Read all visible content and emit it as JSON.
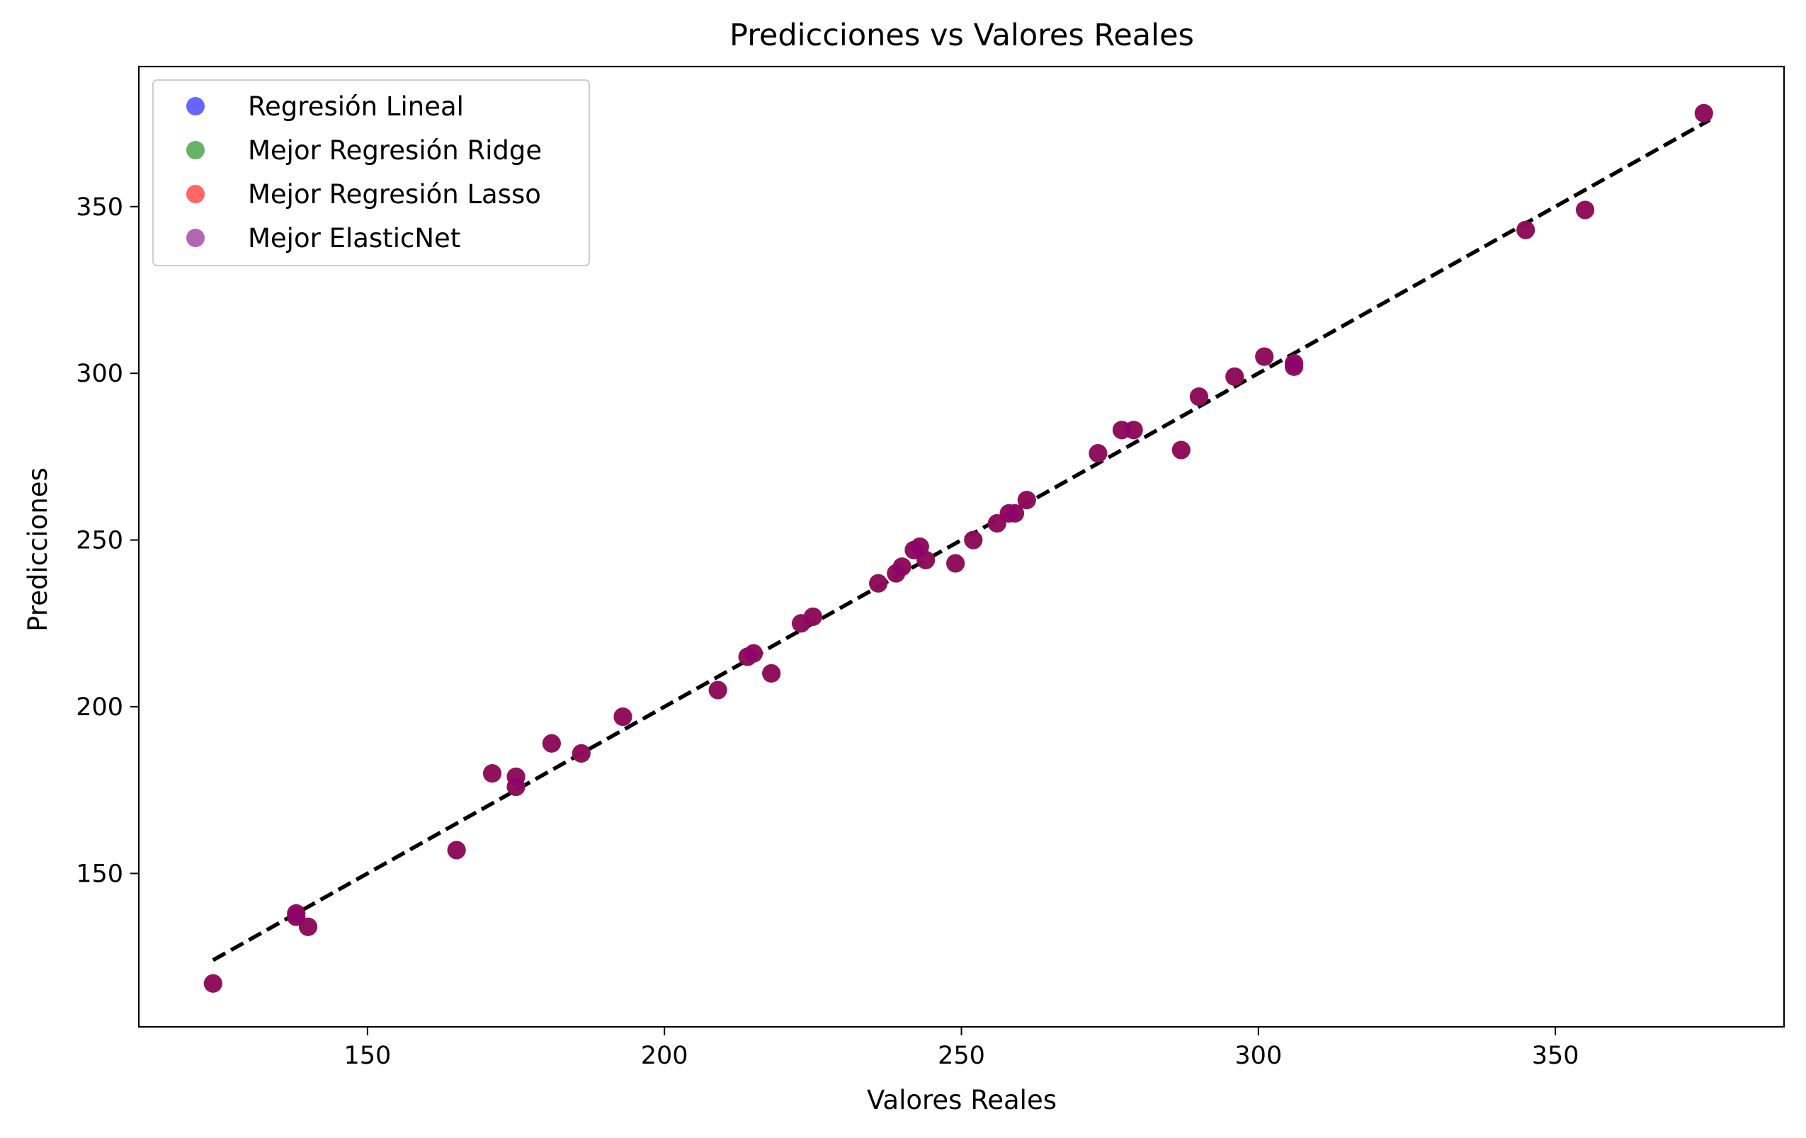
{
  "chart_data": {
    "type": "scatter",
    "title": "Predicciones vs Valores Reales",
    "xlabel": "Valores Reales",
    "ylabel": "Predicciones",
    "xlim": [
      111.5,
      388.5
    ],
    "ylim": [
      104,
      392
    ],
    "xticks": [
      150,
      200,
      250,
      300,
      350
    ],
    "yticks": [
      150,
      200,
      250,
      300,
      350
    ],
    "grid": false,
    "legend_position": "top-left",
    "reference_line": {
      "style": "dashed",
      "color": "#000000",
      "x": [
        124,
        376
      ],
      "y": [
        124,
        376
      ]
    },
    "series": [
      {
        "name": "Regresión Lineal",
        "color": "#0000ff",
        "x": [
          124,
          138,
          138,
          140,
          165,
          171,
          175,
          175,
          181,
          186,
          193,
          209,
          214,
          215,
          218,
          223,
          225,
          236,
          239,
          240,
          242,
          243,
          244,
          249,
          252,
          256,
          258,
          259,
          261,
          273,
          277,
          279,
          287,
          290,
          296,
          301,
          306,
          306,
          345,
          355,
          375
        ],
        "y": [
          117,
          137,
          138,
          134,
          157,
          180,
          176,
          179,
          189,
          186,
          197,
          205,
          215,
          216,
          210,
          225,
          227,
          237,
          240,
          242,
          247,
          248,
          244,
          243,
          250,
          255,
          258,
          258,
          262,
          276,
          283,
          283,
          277,
          293,
          299,
          305,
          302,
          303,
          343,
          349,
          378
        ]
      },
      {
        "name": "Mejor Regresión Ridge",
        "color": "#008000",
        "x": [
          124,
          138,
          138,
          140,
          165,
          171,
          175,
          175,
          181,
          186,
          193,
          209,
          214,
          215,
          218,
          223,
          225,
          236,
          239,
          240,
          242,
          243,
          244,
          249,
          252,
          256,
          258,
          259,
          261,
          273,
          277,
          279,
          287,
          290,
          296,
          301,
          306,
          306,
          345,
          355,
          375
        ],
        "y": [
          117,
          137,
          138,
          134,
          157,
          180,
          176,
          179,
          189,
          186,
          197,
          205,
          215,
          216,
          210,
          225,
          227,
          237,
          240,
          242,
          247,
          248,
          244,
          243,
          250,
          255,
          258,
          258,
          262,
          276,
          283,
          283,
          277,
          293,
          299,
          305,
          302,
          303,
          343,
          349,
          378
        ]
      },
      {
        "name": "Mejor Regresión Lasso",
        "color": "#ff0000",
        "x": [
          124,
          138,
          138,
          140,
          165,
          171,
          175,
          175,
          181,
          186,
          193,
          209,
          214,
          215,
          218,
          223,
          225,
          236,
          239,
          240,
          242,
          243,
          244,
          249,
          252,
          256,
          258,
          259,
          261,
          273,
          277,
          279,
          287,
          290,
          296,
          301,
          306,
          306,
          345,
          355,
          375
        ],
        "y": [
          117,
          137,
          138,
          134,
          157,
          180,
          176,
          179,
          189,
          186,
          197,
          205,
          215,
          216,
          210,
          225,
          227,
          237,
          240,
          242,
          247,
          248,
          244,
          243,
          250,
          255,
          258,
          258,
          262,
          276,
          283,
          283,
          277,
          293,
          299,
          305,
          302,
          303,
          343,
          349,
          378
        ]
      },
      {
        "name": "Mejor ElasticNet",
        "color": "#800080",
        "x": [
          124,
          138,
          138,
          140,
          165,
          171,
          175,
          175,
          181,
          186,
          193,
          209,
          214,
          215,
          218,
          223,
          225,
          236,
          239,
          240,
          242,
          243,
          244,
          249,
          252,
          256,
          258,
          259,
          261,
          273,
          277,
          279,
          287,
          290,
          296,
          301,
          306,
          306,
          345,
          355,
          375
        ],
        "y": [
          117,
          137,
          138,
          134,
          157,
          180,
          176,
          179,
          189,
          186,
          197,
          205,
          215,
          216,
          210,
          225,
          227,
          237,
          240,
          242,
          247,
          248,
          244,
          243,
          250,
          255,
          258,
          258,
          262,
          276,
          283,
          283,
          277,
          293,
          299,
          305,
          302,
          303,
          343,
          349,
          378
        ]
      }
    ]
  }
}
